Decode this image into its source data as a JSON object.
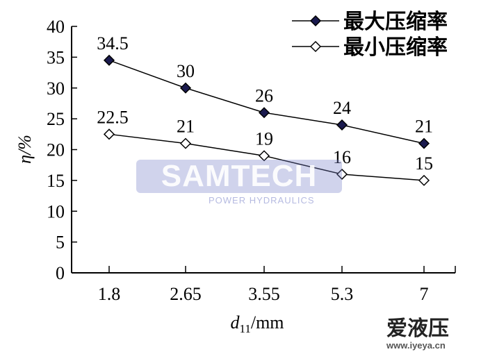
{
  "chart_data": {
    "type": "line",
    "title": "",
    "xlabel": "d11/mm",
    "xlabel_main": "d",
    "xlabel_sub": "11",
    "xlabel_unit": "/mm",
    "ylabel": "η/%",
    "categories": [
      "1.8",
      "2.65",
      "3.55",
      "5.3",
      "7"
    ],
    "ylim": [
      0,
      40
    ],
    "yticks": [
      0,
      5,
      10,
      15,
      20,
      25,
      30,
      35,
      40
    ],
    "grid": false,
    "legend_position": "top-right",
    "series": [
      {
        "name": "最大压缩率",
        "values": [
          34.5,
          30,
          26,
          24,
          21
        ],
        "labels": [
          "34.5",
          "30",
          "26",
          "24",
          "21"
        ],
        "marker": "filled-diamond",
        "marker_color": "#1a1a4e"
      },
      {
        "name": "最小压缩率",
        "values": [
          22.5,
          21,
          19,
          16,
          15
        ],
        "labels": [
          "22.5",
          "21",
          "19",
          "16",
          "15"
        ],
        "marker": "open-diamond",
        "marker_color": "#ffffff"
      }
    ]
  },
  "watermarks": {
    "samtech": "SAMTECH",
    "samtech_sub": "POWER HYDRAULICS",
    "site_logo": "爱液压",
    "site_url": "www.iyeya.cn"
  }
}
